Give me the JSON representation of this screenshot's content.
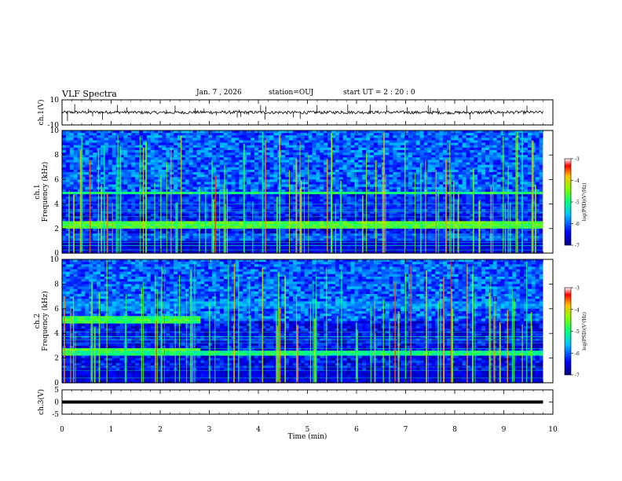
{
  "header": {
    "title": "VLF Spectra",
    "date": "Jan. 7 , 2026",
    "station": "station=OUJ",
    "start_ut": "start UT =  2 : 20 : 0"
  },
  "chart_data": [
    {
      "type": "line",
      "panel": "ch1-waveform",
      "ylabel": "ch.1(V)",
      "ylim": [
        -10,
        10
      ],
      "yticks": [
        "10",
        "-10"
      ],
      "x": [
        0,
        1,
        2,
        3,
        4,
        5,
        6,
        7,
        8,
        9,
        9.8
      ],
      "values": [
        0.0,
        0.2,
        -0.2,
        0.1,
        0.0,
        -0.1,
        0.1,
        0.0,
        -0.2,
        0.1,
        0.0
      ],
      "color": "#000000"
    },
    {
      "type": "heatmap",
      "panel": "ch1-spectrogram",
      "ylabel": "ch.1\nFrequency (kHz)",
      "ylabel_lines": [
        "ch.1",
        "Frequency (kHz)"
      ],
      "ylim": [
        0,
        10
      ],
      "yticks": [
        "0",
        "2",
        "4",
        "6",
        "8",
        "10"
      ],
      "xlim": [
        0,
        10
      ],
      "bands_khz": [
        {
          "f_low": 2.0,
          "f_high": 2.6,
          "level": -4.6
        },
        {
          "f_low": 4.7,
          "f_high": 5.0,
          "level": -5.0
        },
        {
          "f_low": 1.0,
          "f_high": 1.6,
          "level": -6.0
        },
        {
          "f_low": 3.2,
          "f_high": 4.5,
          "level": -6.2
        }
      ],
      "colorbar": {
        "label": "log(PSD)(V²/Hz)",
        "range": [
          -7,
          -3
        ],
        "ticks": [
          "-3",
          "-4",
          "-5",
          "-6",
          "-7"
        ]
      }
    },
    {
      "type": "heatmap",
      "panel": "ch2-spectrogram",
      "ylabel": "ch.2\nFrequency (kHz)",
      "ylabel_lines": [
        "ch.2",
        "Frequency (kHz)"
      ],
      "ylim": [
        0,
        10
      ],
      "yticks": [
        "0",
        "2",
        "4",
        "6",
        "8",
        "10"
      ],
      "xlim": [
        0,
        10
      ],
      "bands_khz": [
        {
          "f_low": 4.8,
          "f_high": 5.4,
          "level": -4.8,
          "x_end": 2.8
        },
        {
          "f_low": 2.4,
          "f_high": 2.9,
          "level": -4.6,
          "x_end": 2.8
        },
        {
          "f_low": 6.0,
          "f_high": 6.6,
          "level": -5.8
        },
        {
          "f_low": 2.1,
          "f_high": 2.5,
          "level": -5.0
        }
      ],
      "colorbar": {
        "label": "log(PSD)(V²/Hz)",
        "range": [
          -7,
          -3
        ],
        "ticks": [
          "-3",
          "-4",
          "-5",
          "-6",
          "-7"
        ]
      }
    },
    {
      "type": "line",
      "panel": "ch3-waveform",
      "ylabel": "ch.3(V)",
      "ylim": [
        -5,
        5
      ],
      "yticks": [
        "5",
        "0",
        "-5"
      ],
      "x": [
        0,
        9.8
      ],
      "values": [
        0,
        0
      ],
      "color": "#000000"
    }
  ],
  "xaxis": {
    "label": "Time (min)",
    "xlim": [
      0,
      10
    ],
    "ticks": [
      "0",
      "1",
      "2",
      "3",
      "4",
      "5",
      "6",
      "7",
      "8",
      "9",
      "10"
    ]
  }
}
